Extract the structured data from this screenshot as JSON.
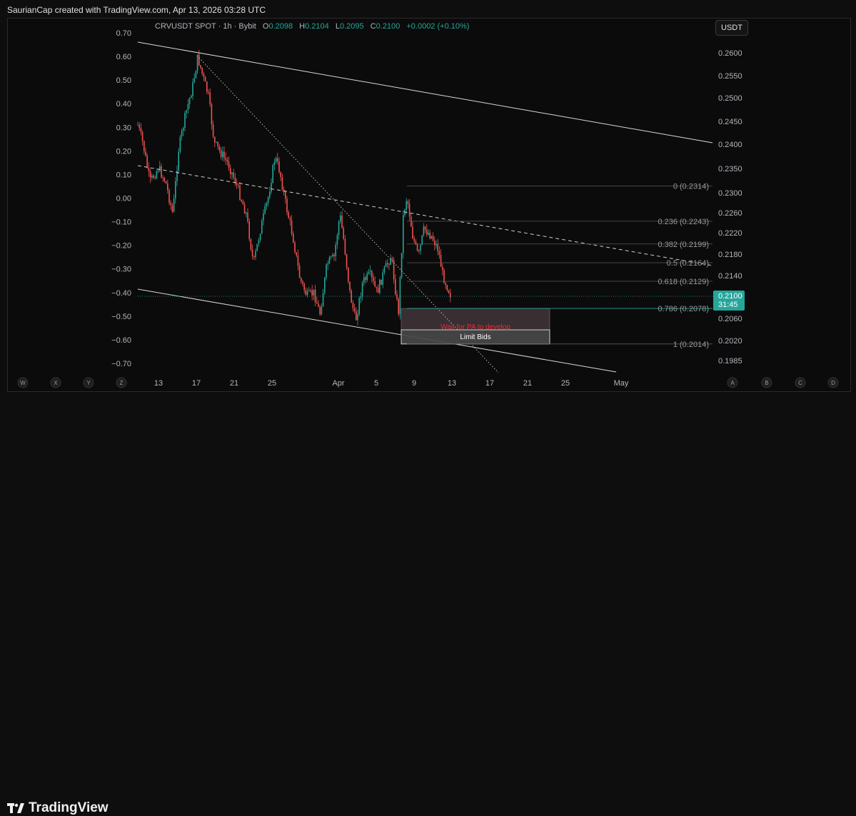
{
  "header": {
    "attribution": "SaurianCap created with TradingView.com, Apr 13, 2026 03:28 UTC"
  },
  "symbol": {
    "name": "CRVUSDT SPOT · 1h · Bybit",
    "o_label": "O",
    "o_value": "0.2098",
    "h_label": "H",
    "h_value": "0.2104",
    "l_label": "L",
    "l_value": "0.2095",
    "c_label": "C",
    "c_value": "0.2100",
    "change": "+0.0002 (+0.10%)"
  },
  "currency_button": "USDT",
  "logo": {
    "text": "TradingView"
  },
  "colors": {
    "up": "#26a69a",
    "down": "#ef5350",
    "background": "#0b0b0b",
    "accent_red": "#e0303a"
  },
  "chart_data": {
    "type": "candlestick",
    "left_axis": {
      "ticks": [
        "0.70",
        "0.60",
        "0.50",
        "0.40",
        "0.30",
        "0.20",
        "0.10",
        "0.00",
        "−0.10",
        "−0.20",
        "−0.30",
        "−0.40",
        "−0.50",
        "−0.60",
        "−0.70"
      ],
      "range": [
        -0.7,
        0.7
      ]
    },
    "right_axis": {
      "ticks": [
        "0.2600",
        "0.2550",
        "0.2500",
        "0.2450",
        "0.2400",
        "0.2350",
        "0.2300",
        "0.2260",
        "0.2220",
        "0.2180",
        "0.2140",
        "0.2100",
        "0.2060",
        "0.2020",
        "0.1985"
      ]
    },
    "x_axis": {
      "ticks": [
        "13",
        "17",
        "21",
        "25",
        "Apr",
        "5",
        "9",
        "13",
        "17",
        "21",
        "25",
        "May"
      ]
    },
    "scroll_buttons_left": [
      "W",
      "X",
      "Y",
      "Z"
    ],
    "scroll_buttons_right": [
      "A",
      "B",
      "C",
      "D"
    ],
    "current_price": {
      "value": "0.2100",
      "countdown": "31:45"
    },
    "fibonacci": [
      {
        "label": "0 (0.2314)",
        "price": 0.2314
      },
      {
        "label": "0.236 (0.2243)",
        "price": 0.2243
      },
      {
        "label": "0.382 (0.2199)",
        "price": 0.2199
      },
      {
        "label": "0.5 (0.2164)",
        "price": 0.2164
      },
      {
        "label": "0.618 (0.2129)",
        "price": 0.2129
      },
      {
        "label": "0.786 (0.2078)",
        "price": 0.2078
      },
      {
        "label": "1 (0.2014)",
        "price": 0.2014
      }
    ],
    "annotations": {
      "zone_text": "Wait for PA to develop",
      "bids_text": "Limit Bids"
    }
  }
}
